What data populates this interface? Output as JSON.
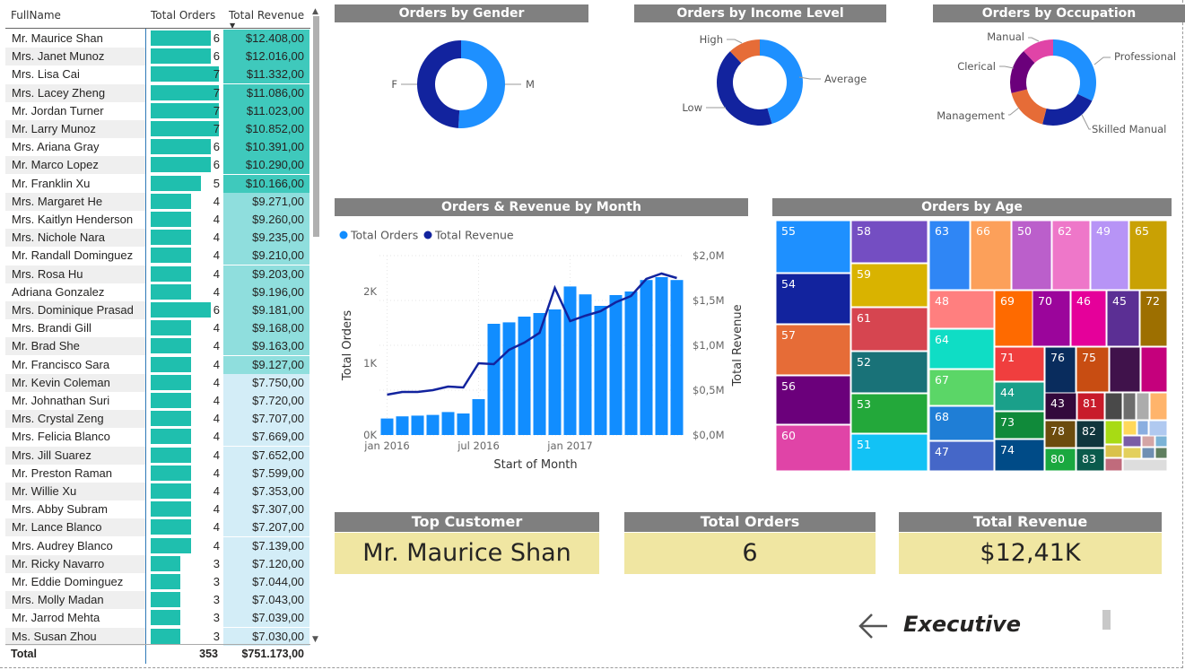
{
  "table": {
    "headers": {
      "name": "FullName",
      "orders": "Total Orders",
      "revenue": "Total Revenue"
    },
    "rows": [
      {
        "name": "Mr. Maurice Shan",
        "orders": 6,
        "revenue": "$12.408,00",
        "rev_value": 12408
      },
      {
        "name": "Mrs. Janet Munoz",
        "orders": 6,
        "revenue": "$12.016,00",
        "rev_value": 12016
      },
      {
        "name": "Mrs. Lisa Cai",
        "orders": 7,
        "revenue": "$11.332,00",
        "rev_value": 11332
      },
      {
        "name": "Mrs. Lacey Zheng",
        "orders": 7,
        "revenue": "$11.086,00",
        "rev_value": 11086
      },
      {
        "name": "Mr. Jordan Turner",
        "orders": 7,
        "revenue": "$11.023,00",
        "rev_value": 11023
      },
      {
        "name": "Mr. Larry Munoz",
        "orders": 7,
        "revenue": "$10.852,00",
        "rev_value": 10852
      },
      {
        "name": "Mrs. Ariana Gray",
        "orders": 6,
        "revenue": "$10.391,00",
        "rev_value": 10391
      },
      {
        "name": "Mr. Marco Lopez",
        "orders": 6,
        "revenue": "$10.290,00",
        "rev_value": 10290
      },
      {
        "name": "Mr. Franklin Xu",
        "orders": 5,
        "revenue": "$10.166,00",
        "rev_value": 10166
      },
      {
        "name": "Mrs. Margaret He",
        "orders": 4,
        "revenue": "$9.271,00",
        "rev_value": 9271
      },
      {
        "name": "Mrs. Kaitlyn Henderson",
        "orders": 4,
        "revenue": "$9.260,00",
        "rev_value": 9260
      },
      {
        "name": "Mrs. Nichole Nara",
        "orders": 4,
        "revenue": "$9.235,00",
        "rev_value": 9235
      },
      {
        "name": "Mr. Randall Dominguez",
        "orders": 4,
        "revenue": "$9.210,00",
        "rev_value": 9210
      },
      {
        "name": "Mrs. Rosa Hu",
        "orders": 4,
        "revenue": "$9.203,00",
        "rev_value": 9203
      },
      {
        "name": "Adriana Gonzalez",
        "orders": 4,
        "revenue": "$9.196,00",
        "rev_value": 9196
      },
      {
        "name": "Mrs. Dominique Prasad",
        "orders": 6,
        "revenue": "$9.181,00",
        "rev_value": 9181
      },
      {
        "name": "Mrs. Brandi Gill",
        "orders": 4,
        "revenue": "$9.168,00",
        "rev_value": 9168
      },
      {
        "name": "Mr. Brad She",
        "orders": 4,
        "revenue": "$9.163,00",
        "rev_value": 9163
      },
      {
        "name": "Mr. Francisco Sara",
        "orders": 4,
        "revenue": "$9.127,00",
        "rev_value": 9127
      },
      {
        "name": "Mr. Kevin Coleman",
        "orders": 4,
        "revenue": "$7.750,00",
        "rev_value": 7750
      },
      {
        "name": "Mr. Johnathan Suri",
        "orders": 4,
        "revenue": "$7.720,00",
        "rev_value": 7720
      },
      {
        "name": "Mrs. Crystal Zeng",
        "orders": 4,
        "revenue": "$7.707,00",
        "rev_value": 7707
      },
      {
        "name": "Mrs. Felicia Blanco",
        "orders": 4,
        "revenue": "$7.669,00",
        "rev_value": 7669
      },
      {
        "name": "Mrs. Jill Suarez",
        "orders": 4,
        "revenue": "$7.652,00",
        "rev_value": 7652
      },
      {
        "name": "Mr. Preston Raman",
        "orders": 4,
        "revenue": "$7.599,00",
        "rev_value": 7599
      },
      {
        "name": "Mr. Willie Xu",
        "orders": 4,
        "revenue": "$7.353,00",
        "rev_value": 7353
      },
      {
        "name": "Mrs. Abby Subram",
        "orders": 4,
        "revenue": "$7.307,00",
        "rev_value": 7307
      },
      {
        "name": "Mr. Lance Blanco",
        "orders": 4,
        "revenue": "$7.207,00",
        "rev_value": 7207
      },
      {
        "name": "Mrs. Audrey Blanco",
        "orders": 4,
        "revenue": "$7.139,00",
        "rev_value": 7139
      },
      {
        "name": "Mr. Ricky Navarro",
        "orders": 3,
        "revenue": "$7.120,00",
        "rev_value": 7120
      },
      {
        "name": "Mr. Eddie Dominguez",
        "orders": 3,
        "revenue": "$7.044,00",
        "rev_value": 7044
      },
      {
        "name": "Mrs. Molly Madan",
        "orders": 3,
        "revenue": "$7.043,00",
        "rev_value": 7043
      },
      {
        "name": "Mr. Jarrod Mehta",
        "orders": 3,
        "revenue": "$7.039,00",
        "rev_value": 7039
      },
      {
        "name": "Ms. Susan Zhou",
        "orders": 3,
        "revenue": "$7.030,00",
        "rev_value": 7030
      }
    ],
    "total": {
      "label": "Total",
      "orders": "353",
      "revenue": "$751.173,00"
    },
    "colors": {
      "bar": "#1fbfae",
      "rev_high": "#3fc9bc",
      "rev_mid": "#8fdedd",
      "rev_low": "#d3edf7"
    }
  },
  "gender": {
    "title": "Orders by Gender",
    "chart_data": {
      "type": "pie",
      "categories": [
        "M",
        "F"
      ],
      "values": [
        51,
        49
      ],
      "colors": [
        "#1e90ff",
        "#12239e"
      ]
    }
  },
  "income": {
    "title": "Orders by Income Level",
    "chart_data": {
      "type": "pie",
      "categories": [
        "Average",
        "Low",
        "High"
      ],
      "values": [
        45,
        42,
        12
      ],
      "colors": [
        "#1e90ff",
        "#12239e",
        "#e66c37"
      ]
    }
  },
  "occupation": {
    "title": "Orders by Occupation",
    "chart_data": {
      "type": "pie",
      "categories": [
        "Professional",
        "Skilled Manual",
        "Management",
        "Clerical",
        "Manual"
      ],
      "values": [
        32,
        22,
        17,
        17,
        12
      ],
      "colors": [
        "#1e90ff",
        "#12239e",
        "#e66c37",
        "#6b007b",
        "#e044a7"
      ]
    }
  },
  "monthly": {
    "title": "Orders & Revenue by Month",
    "legend": [
      "Total Orders",
      "Total Revenue"
    ],
    "chart_data": {
      "type": "bar",
      "x": [
        "2016-01",
        "2016-02",
        "2016-03",
        "2016-04",
        "2016-05",
        "2016-06",
        "2016-07",
        "2016-08",
        "2016-09",
        "2016-10",
        "2016-11",
        "2016-12",
        "2017-01",
        "2017-02",
        "2017-03",
        "2017-04",
        "2017-05",
        "2017-06",
        "2017-07",
        "2017-08"
      ],
      "x_ticks": [
        "jan 2016",
        "jul 2016",
        "jan 2017"
      ],
      "series": [
        {
          "name": "Total Orders",
          "values": [
            230,
            260,
            270,
            280,
            320,
            300,
            500,
            1550,
            1570,
            1650,
            1700,
            1750,
            2070,
            1960,
            1800,
            1950,
            2000,
            2160,
            2200,
            2160
          ],
          "color": "#118dff"
        },
        {
          "name": "Total Revenue",
          "values": [
            0.45,
            0.48,
            0.48,
            0.5,
            0.54,
            0.53,
            0.8,
            0.79,
            0.95,
            1.03,
            1.14,
            1.64,
            1.27,
            1.33,
            1.38,
            1.48,
            1.55,
            1.74,
            1.8,
            1.75
          ],
          "color": "#12239e"
        }
      ],
      "xlabel": "Start of Month",
      "ylabel": "Total Orders",
      "y2label": "Total Revenue",
      "y_ticks": [
        "0K",
        "1K",
        "2K"
      ],
      "y2_ticks": [
        "$0,0M",
        "$0,5M",
        "$1,0M",
        "$1,5M",
        "$2,0M"
      ],
      "ylim": [
        0,
        2500
      ],
      "y2lim": [
        0,
        2.0
      ]
    }
  },
  "age": {
    "title": "Orders by Age",
    "chart_data": {
      "type": "treemap",
      "labels": [
        "55",
        "58",
        "63",
        "66",
        "50",
        "62",
        "49",
        "65",
        "54",
        "59",
        "48",
        "69",
        "70",
        "46",
        "45",
        "72",
        "57",
        "61",
        "64",
        "71",
        "76",
        "75",
        "52",
        "67",
        "44",
        "56",
        "53",
        "68",
        "73",
        "43",
        "81",
        "60",
        "51",
        "47",
        "74",
        "78",
        "82",
        "80",
        "83"
      ]
    }
  },
  "kpis": [
    {
      "label": "Top Customer",
      "value": "Mr. Maurice Shan"
    },
    {
      "label": "Total Orders",
      "value": "6"
    },
    {
      "label": "Total Revenue",
      "value": "$12,41K"
    }
  ],
  "nav": {
    "label": "Executive",
    "icon": "arrow-left-icon"
  }
}
